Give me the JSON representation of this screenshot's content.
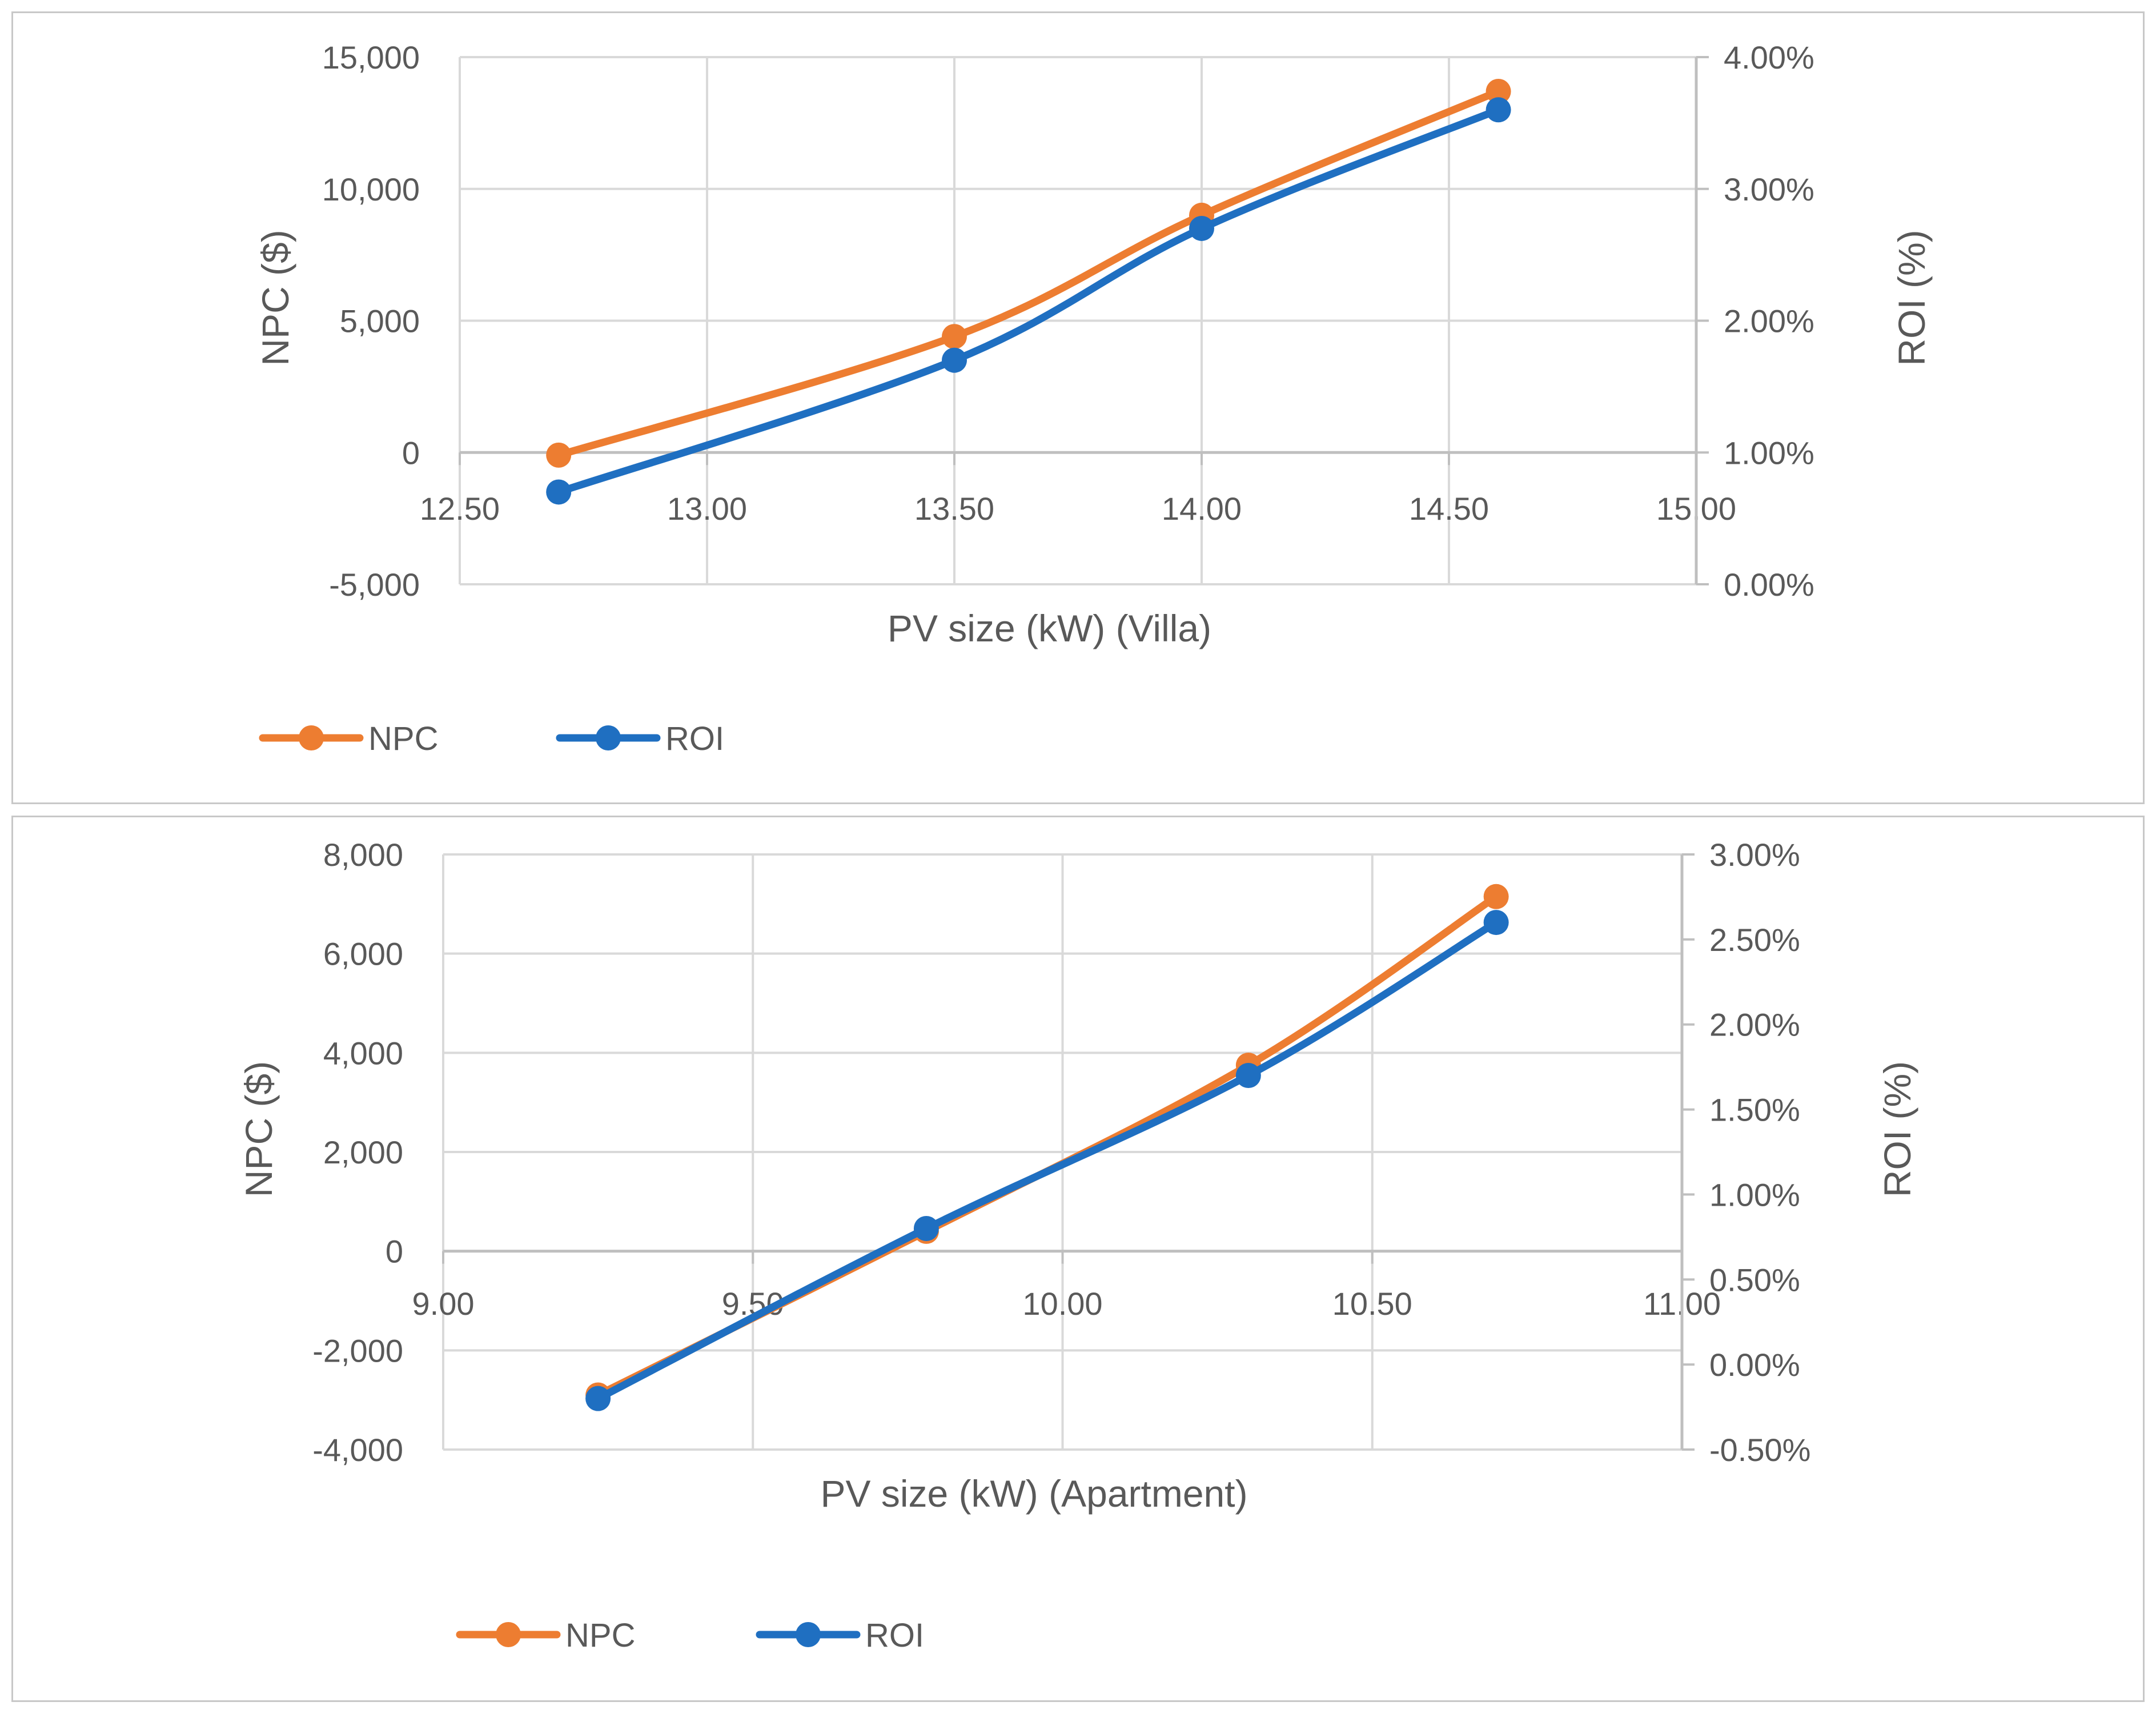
{
  "colors": {
    "npc": "#ED7D31",
    "roi": "#1F6FC1",
    "grid": "#d9d9d9",
    "axis": "#bfbfbf",
    "text": "#595959"
  },
  "chart_data": [
    {
      "id": "villa",
      "type": "line",
      "xlabel": "PV size (kW) (Villa)",
      "ylabel": "NPC ($)",
      "y2label": "ROI (%)",
      "xlim": [
        12.5,
        15.0
      ],
      "ylim": [
        -5000,
        15000
      ],
      "y2lim": [
        0.0,
        4.0
      ],
      "x_ticks": [
        "12.50",
        "13.00",
        "13.50",
        "14.00",
        "14.50",
        "15.00"
      ],
      "y_ticks": [
        "15,000",
        "10,000",
        "5,000",
        "0",
        "-5,000"
      ],
      "y2_ticks": [
        "4.00%",
        "3.00%",
        "2.00%",
        "1.00%",
        "0.00%"
      ],
      "series": [
        {
          "name": "NPC",
          "axis": "left",
          "x": [
            12.7,
            13.5,
            14.0,
            14.6
          ],
          "values": [
            -100,
            4400,
            9000,
            13700
          ]
        },
        {
          "name": "ROI",
          "axis": "right",
          "x": [
            12.7,
            13.5,
            14.0,
            14.6
          ],
          "values": [
            0.7,
            1.7,
            2.7,
            3.6
          ]
        }
      ],
      "legend": [
        "NPC",
        "ROI"
      ]
    },
    {
      "id": "apartment",
      "type": "line",
      "xlabel": "PV size (kW) (Apartment)",
      "ylabel": "NPC ($)",
      "y2label": "ROI (%)",
      "xlim": [
        9.0,
        11.0
      ],
      "ylim": [
        -4000,
        8000
      ],
      "y2lim": [
        -0.5,
        3.0
      ],
      "x_ticks": [
        "9.00",
        "9.50",
        "10.00",
        "10.50",
        "11.00"
      ],
      "y_ticks": [
        "8,000",
        "6,000",
        "4,000",
        "2,000",
        "0",
        "-2,000",
        "-4,000"
      ],
      "y2_ticks": [
        "3.00%",
        "2.50%",
        "2.00%",
        "1.50%",
        "1.00%",
        "0.50%",
        "0.00%",
        "-0.50%"
      ],
      "series": [
        {
          "name": "NPC",
          "axis": "left",
          "x": [
            9.25,
            9.78,
            10.3,
            10.7
          ],
          "values": [
            -2900,
            400,
            3750,
            7150
          ]
        },
        {
          "name": "ROI",
          "axis": "right",
          "x": [
            9.25,
            9.78,
            10.3,
            10.7
          ],
          "values": [
            -0.2,
            0.8,
            1.7,
            2.6
          ]
        }
      ],
      "legend": [
        "NPC",
        "ROI"
      ]
    }
  ]
}
